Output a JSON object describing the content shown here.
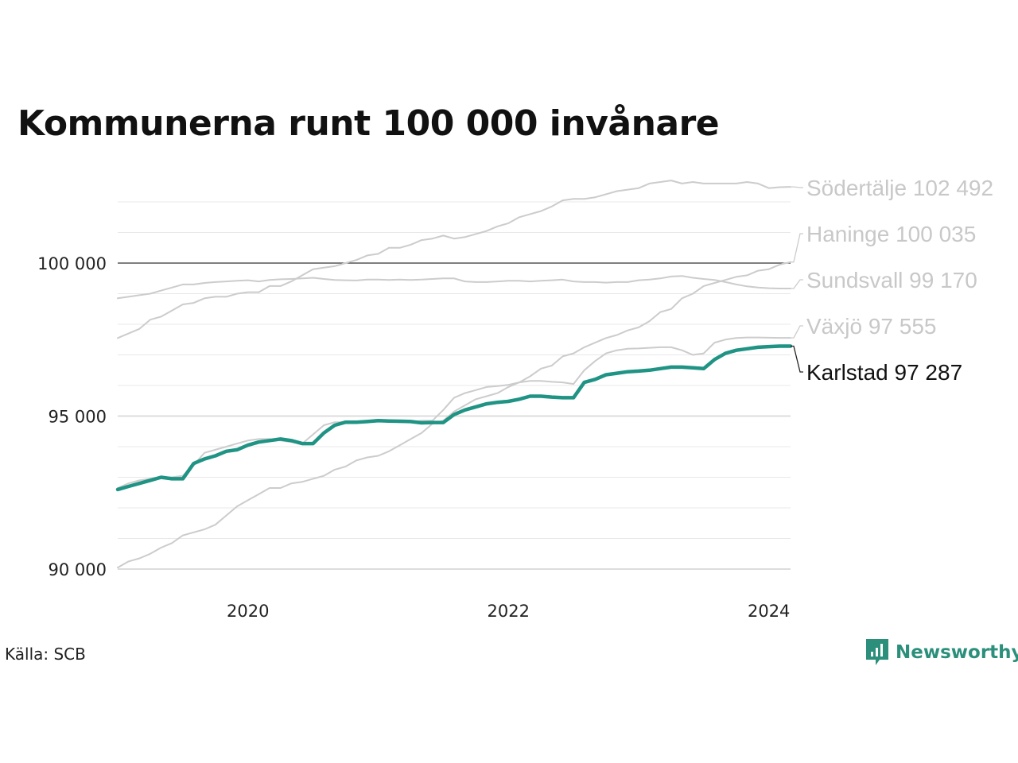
{
  "title": "Kommunerna runt 100 000 invånare",
  "source": "Källa: SCB",
  "brand": {
    "name": "Newsworthy",
    "icon": "bar-chart-speech-bubble-icon",
    "color": "#2b8f7c"
  },
  "chart_data": {
    "type": "line",
    "title": "Kommunerna runt 100 000 invånare",
    "xlabel": "",
    "ylabel": "",
    "x_range": [
      "2019-01",
      "2024-03"
    ],
    "ylim": [
      90000,
      102900
    ],
    "y_ticks": [
      {
        "value": 90000,
        "label": "90 000"
      },
      {
        "value": 95000,
        "label": "95 000"
      },
      {
        "value": 100000,
        "label": "100 000"
      }
    ],
    "x_ticks": [
      {
        "value": "2020-01",
        "label": "2020"
      },
      {
        "value": "2022-01",
        "label": "2022"
      },
      {
        "value": "2024-01",
        "label": "2024"
      }
    ],
    "minor_gridline_step": 1000,
    "reference_line": 100000,
    "grid": true,
    "legend": "direct labels at line ends (right)",
    "x_start": "2019-01",
    "x_step": "month",
    "series": [
      {
        "name": "Södertälje",
        "label": "Södertälje 102 492",
        "highlight": false,
        "color": "#cccccc",
        "values": [
          97550,
          97700,
          97850,
          98150,
          98250,
          98450,
          98650,
          98700,
          98850,
          98900,
          98900,
          99000,
          99050,
          99050,
          99250,
          99250,
          99400,
          99600,
          99800,
          99850,
          99900,
          100000,
          100100,
          100250,
          100300,
          100500,
          100500,
          100600,
          100750,
          100800,
          100900,
          100800,
          100850,
          100950,
          101050,
          101200,
          101300,
          101500,
          101600,
          101700,
          101850,
          102050,
          102100,
          102100,
          102150,
          102250,
          102350,
          102400,
          102450,
          102600,
          102650,
          102700,
          102600,
          102650,
          102600,
          102600,
          102600,
          102600,
          102650,
          102600,
          102450,
          102480,
          102492
        ]
      },
      {
        "name": "Haninge",
        "label": "Haninge 100 035",
        "highlight": false,
        "color": "#cccccc",
        "values": [
          90050,
          90250,
          90350,
          90500,
          90700,
          90850,
          91100,
          91200,
          91300,
          91450,
          91750,
          92050,
          92250,
          92450,
          92650,
          92650,
          92800,
          92850,
          92950,
          93050,
          93250,
          93350,
          93550,
          93650,
          93700,
          93850,
          94050,
          94250,
          94450,
          94750,
          94850,
          95150,
          95350,
          95550,
          95650,
          95750,
          95950,
          96100,
          96300,
          96550,
          96650,
          96950,
          97050,
          97250,
          97400,
          97550,
          97650,
          97800,
          97900,
          98100,
          98400,
          98500,
          98850,
          99000,
          99250,
          99350,
          99450,
          99550,
          99600,
          99750,
          99800,
          99950,
          100035
        ]
      },
      {
        "name": "Sundsvall",
        "label": "Sundsvall  99 170",
        "highlight": false,
        "color": "#cccccc",
        "values": [
          98850,
          98900,
          98950,
          99000,
          99100,
          99200,
          99300,
          99300,
          99350,
          99380,
          99400,
          99420,
          99440,
          99400,
          99450,
          99470,
          99480,
          99500,
          99520,
          99480,
          99450,
          99440,
          99430,
          99460,
          99460,
          99450,
          99460,
          99450,
          99460,
          99480,
          99500,
          99500,
          99400,
          99380,
          99380,
          99400,
          99420,
          99420,
          99400,
          99420,
          99440,
          99460,
          99400,
          99380,
          99380,
          99360,
          99380,
          99380,
          99440,
          99460,
          99500,
          99560,
          99580,
          99520,
          99480,
          99450,
          99380,
          99300,
          99240,
          99200,
          99180,
          99170,
          99170
        ]
      },
      {
        "name": "Växjö",
        "label": "Växjö  97 555",
        "highlight": false,
        "color": "#cccccc",
        "values": [
          92650,
          92800,
          92900,
          92950,
          93000,
          93000,
          93050,
          93400,
          93800,
          93900,
          94000,
          94100,
          94200,
          94250,
          94250,
          94200,
          94150,
          94100,
          94400,
          94700,
          94800,
          94800,
          94820,
          94850,
          94850,
          94820,
          94800,
          94800,
          94850,
          94850,
          95200,
          95600,
          95750,
          95850,
          95950,
          95980,
          96020,
          96100,
          96150,
          96150,
          96120,
          96100,
          96050,
          96500,
          96800,
          97050,
          97150,
          97200,
          97210,
          97230,
          97250,
          97250,
          97150,
          97000,
          97050,
          97400,
          97500,
          97550,
          97570,
          97570,
          97560,
          97555,
          97555
        ]
      },
      {
        "name": "Karlstad",
        "label": "Karlstad  97 287",
        "highlight": true,
        "color": "#1f9384",
        "values": [
          92600,
          92700,
          92800,
          92900,
          93000,
          92950,
          92950,
          93450,
          93600,
          93700,
          93850,
          93900,
          94050,
          94150,
          94200,
          94250,
          94200,
          94100,
          94100,
          94450,
          94700,
          94800,
          94800,
          94820,
          94850,
          94840,
          94830,
          94820,
          94780,
          94790,
          94790,
          95050,
          95200,
          95300,
          95400,
          95450,
          95480,
          95550,
          95650,
          95650,
          95620,
          95600,
          95600,
          96100,
          96200,
          96350,
          96400,
          96450,
          96470,
          96500,
          96550,
          96600,
          96600,
          96580,
          96550,
          96850,
          97050,
          97150,
          97200,
          97250,
          97270,
          97287,
          97287
        ]
      }
    ]
  }
}
